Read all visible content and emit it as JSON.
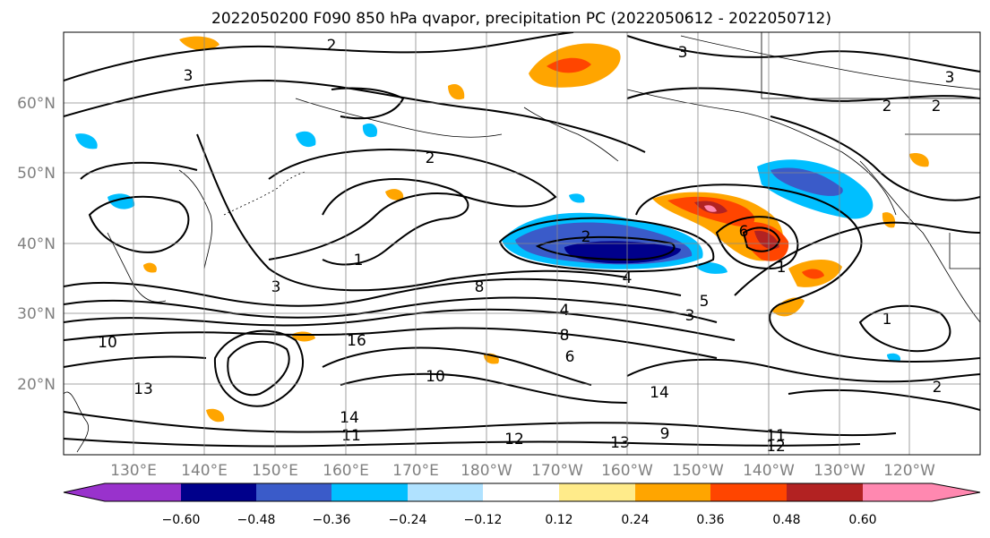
{
  "title": "2022050200 F090 850 hPa qvapor, precipitation PC (2022050612 - 2022050712)",
  "lat_labels": [
    "60°N",
    "50°N",
    "40°N",
    "30°N",
    "20°N"
  ],
  "lon_labels": [
    "130°E",
    "140°E",
    "150°E",
    "160°E",
    "170°E",
    "180°W",
    "170°W",
    "160°W",
    "150°W",
    "140°W",
    "130°W",
    "120°W"
  ],
  "colorbar": {
    "colors": [
      "#9932cc",
      "#00008b",
      "#3a5bc9",
      "#00bfff",
      "#b0e2ff",
      "#ffffff",
      "#ffeb8a",
      "#ffa500",
      "#ff4500",
      "#b22222",
      "#ff88b0"
    ],
    "tick_labels": [
      "−0.60",
      "−0.48",
      "−0.36",
      "−0.24",
      "−0.12",
      "0.12",
      "0.24",
      "0.36",
      "0.48",
      "0.60"
    ]
  },
  "contour_labels": [
    "2",
    "3",
    "2",
    "3",
    "2",
    "2",
    "3",
    "2",
    "1",
    "3",
    "4",
    "4",
    "5",
    "6",
    "8",
    "10",
    "13",
    "11",
    "12",
    "13",
    "12",
    "14",
    "16",
    "6",
    "8",
    "10",
    "14",
    "9",
    "11",
    "1",
    "2",
    "1",
    "3"
  ]
}
